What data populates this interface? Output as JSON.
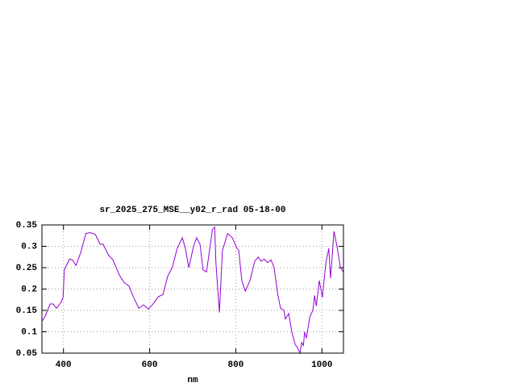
{
  "chart_data": {
    "type": "line",
    "title": "sr_2025_275_MSE__y02_r_rad 05-18-00",
    "x_label": "nm",
    "x": [
      350,
      357,
      369,
      376,
      384,
      395,
      399,
      402,
      414,
      421,
      429,
      440,
      452,
      462,
      474,
      485,
      492,
      504,
      515,
      530,
      541,
      552,
      563,
      575,
      586,
      597,
      608,
      620,
      631,
      642,
      653,
      664,
      676,
      683,
      691,
      702,
      709,
      717,
      724,
      732,
      739,
      746,
      751,
      754,
      762,
      769,
      781,
      792,
      803,
      807,
      814,
      822,
      833,
      844,
      852,
      859,
      866,
      874,
      882,
      889,
      897,
      904,
      912,
      915,
      923,
      930,
      938,
      942,
      949,
      953,
      957,
      960,
      964,
      972,
      979,
      983,
      987,
      994,
      1001,
      1009,
      1016,
      1020,
      1028,
      1035,
      1043,
      1050
    ],
    "values": [
      0.125,
      0.135,
      0.165,
      0.165,
      0.155,
      0.17,
      0.18,
      0.245,
      0.27,
      0.268,
      0.255,
      0.285,
      0.33,
      0.332,
      0.328,
      0.305,
      0.305,
      0.28,
      0.268,
      0.232,
      0.215,
      0.207,
      0.18,
      0.155,
      0.163,
      0.153,
      0.165,
      0.182,
      0.187,
      0.23,
      0.252,
      0.295,
      0.32,
      0.295,
      0.25,
      0.3,
      0.32,
      0.305,
      0.245,
      0.24,
      0.29,
      0.34,
      0.345,
      0.26,
      0.145,
      0.29,
      0.33,
      0.32,
      0.295,
      0.29,
      0.22,
      0.195,
      0.22,
      0.265,
      0.275,
      0.265,
      0.27,
      0.262,
      0.268,
      0.25,
      0.19,
      0.155,
      0.15,
      0.13,
      0.143,
      0.1,
      0.07,
      0.065,
      0.05,
      0.075,
      0.068,
      0.1,
      0.085,
      0.135,
      0.15,
      0.185,
      0.16,
      0.22,
      0.18,
      0.26,
      0.295,
      0.225,
      0.335,
      0.3,
      0.25,
      0.24
    ],
    "color": "#9400d3",
    "grid": true,
    "xlim": [
      350,
      1050
    ],
    "xticks": [
      400,
      600,
      800,
      1000
    ],
    "ylim": [
      0.05,
      0.35
    ],
    "yticks": [
      0.05,
      0.1,
      0.15,
      0.2,
      0.25,
      0.3,
      0.35
    ]
  }
}
